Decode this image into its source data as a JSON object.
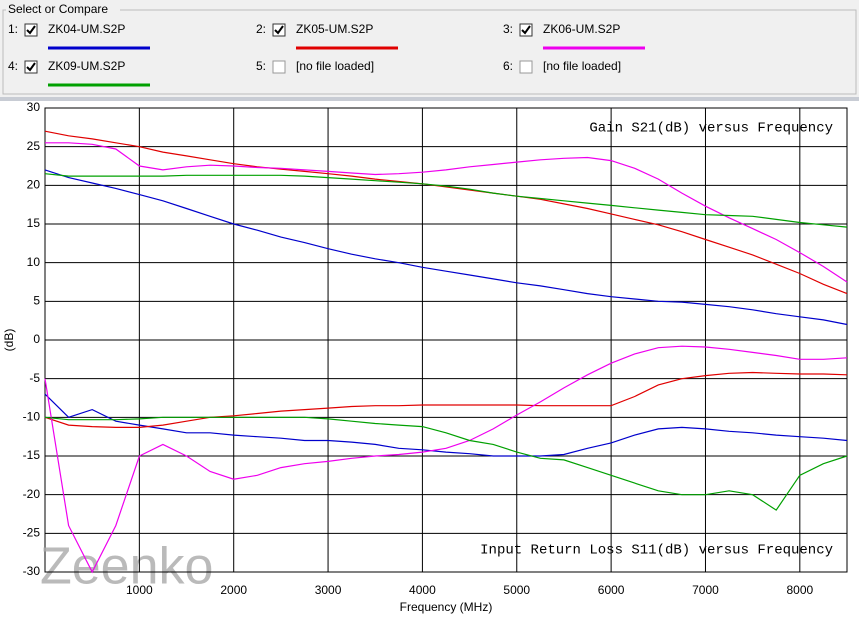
{
  "panel": {
    "title": "Select or Compare",
    "slots": [
      {
        "index": "1:",
        "checked": true
      },
      {
        "index": "2:",
        "checked": true
      },
      {
        "index": "3:",
        "checked": true
      },
      {
        "index": "4:",
        "checked": true
      },
      {
        "index": "5:",
        "checked": false,
        "label": "[no file loaded]"
      },
      {
        "index": "6:",
        "checked": false,
        "label": "[no file loaded]"
      }
    ]
  },
  "chart_data": {
    "type": "line",
    "annotations": [
      "Gain S21(dB) versus Frequency",
      "Input Return Loss S11(dB) versus Frequency"
    ],
    "x_label": "Frequency (MHz)",
    "y_label": "(dB)",
    "watermark": "Zeenko",
    "xlim": [
      0,
      8500
    ],
    "xticks": [
      1000,
      2000,
      3000,
      4000,
      5000,
      6000,
      7000,
      8000
    ],
    "ylim": [
      -30,
      30
    ],
    "yticks": [
      -30,
      -25,
      -20,
      -15,
      -10,
      -5,
      0,
      5,
      10,
      15,
      20,
      25,
      30
    ],
    "grid": true,
    "x": [
      0,
      250,
      500,
      750,
      1000,
      1250,
      1500,
      1750,
      2000,
      2250,
      2500,
      2750,
      3000,
      3250,
      3500,
      3750,
      4000,
      4250,
      4500,
      4750,
      5000,
      5250,
      5500,
      5750,
      6000,
      6250,
      6500,
      6750,
      7000,
      7250,
      7500,
      7750,
      8000,
      8250,
      8500
    ],
    "series": [
      {
        "name": "ZK04-UM.S2P",
        "color": "#0000cc",
        "values": [
          22,
          21,
          20.3,
          19.6,
          18.8,
          18,
          17,
          16,
          15,
          14.2,
          13.3,
          12.6,
          11.8,
          11.1,
          10.5,
          10,
          9.4,
          8.9,
          8.4,
          7.9,
          7.4,
          7,
          6.5,
          6,
          5.6,
          5.3,
          5,
          4.9,
          4.6,
          4.3,
          3.9,
          3.4,
          3,
          2.6,
          2
        ],
        "s11_values": [
          -7,
          -10,
          -9,
          -10.5,
          -11,
          -11.5,
          -12,
          -12,
          -12.3,
          -12.5,
          -12.7,
          -13,
          -13,
          -13.2,
          -13.5,
          -14,
          -14.2,
          -14.5,
          -14.7,
          -15,
          -15,
          -15,
          -14.8,
          -14,
          -13.3,
          -12.3,
          -11.5,
          -11.3,
          -11.5,
          -11.8,
          -12,
          -12.3,
          -12.5,
          -12.7,
          -13
        ]
      },
      {
        "name": "ZK05-UM.S2P",
        "color": "#e00000",
        "values": [
          27,
          26.4,
          26,
          25.5,
          25,
          24.3,
          23.8,
          23.3,
          22.8,
          22.4,
          22.1,
          21.8,
          21.5,
          21.2,
          20.8,
          20.5,
          20.2,
          19.8,
          19.4,
          19,
          18.6,
          18.2,
          17.6,
          17,
          16.3,
          15.6,
          14.9,
          14,
          13,
          12,
          11,
          9.8,
          8.6,
          7.2,
          6
        ],
        "s11_values": [
          -10,
          -11,
          -11.2,
          -11.3,
          -11.3,
          -11,
          -10.5,
          -10,
          -9.8,
          -9.5,
          -9.2,
          -9,
          -8.8,
          -8.6,
          -8.5,
          -8.5,
          -8.4,
          -8.4,
          -8.4,
          -8.4,
          -8.4,
          -8.5,
          -8.5,
          -8.5,
          -8.5,
          -7.3,
          -5.8,
          -5,
          -4.6,
          -4.3,
          -4.2,
          -4.3,
          -4.4,
          -4.4,
          -4.5
        ]
      },
      {
        "name": "ZK06-UM.S2P",
        "color": "#ee00ee",
        "values": [
          25.5,
          25.5,
          25.3,
          24.7,
          22.5,
          22,
          22.4,
          22.6,
          22.5,
          22.3,
          22.2,
          22,
          21.8,
          21.6,
          21.4,
          21.5,
          21.7,
          22,
          22.4,
          22.7,
          23,
          23.3,
          23.5,
          23.6,
          23.2,
          22.2,
          20.8,
          19,
          17.3,
          15.8,
          14.4,
          13,
          11.3,
          9.5,
          7.5
        ],
        "s11_values": [
          -5,
          -24,
          -30,
          -24,
          -15,
          -13.5,
          -15,
          -17,
          -18,
          -17.5,
          -16.5,
          -16,
          -15.7,
          -15.3,
          -15,
          -14.8,
          -14.5,
          -14,
          -13,
          -11.5,
          -9.7,
          -8,
          -6.2,
          -4.5,
          -3,
          -1.8,
          -1,
          -0.8,
          -0.9,
          -1.2,
          -1.6,
          -2,
          -2.5,
          -2.5,
          -2.3
        ]
      },
      {
        "name": "ZK09-UM.S2P",
        "color": "#00a000",
        "values": [
          21.5,
          21.2,
          21.2,
          21.2,
          21.2,
          21.2,
          21.3,
          21.3,
          21.3,
          21.3,
          21.3,
          21.2,
          21,
          20.8,
          20.6,
          20.4,
          20.2,
          19.9,
          19.5,
          19,
          18.6,
          18.3,
          18,
          17.7,
          17.4,
          17.1,
          16.8,
          16.5,
          16.2,
          16.1,
          16,
          15.6,
          15.2,
          14.9,
          14.6
        ],
        "s11_values": [
          -10,
          -10.3,
          -10.3,
          -10.3,
          -10.2,
          -10,
          -10,
          -10,
          -10,
          -10,
          -10,
          -10,
          -10.2,
          -10.5,
          -10.8,
          -11,
          -11.2,
          -12,
          -13,
          -13.5,
          -14.5,
          -15.3,
          -15.5,
          -16.5,
          -17.5,
          -18.5,
          -19.5,
          -20,
          -20,
          -19.5,
          -20,
          -22,
          -17.5,
          -16,
          -15
        ]
      }
    ]
  }
}
